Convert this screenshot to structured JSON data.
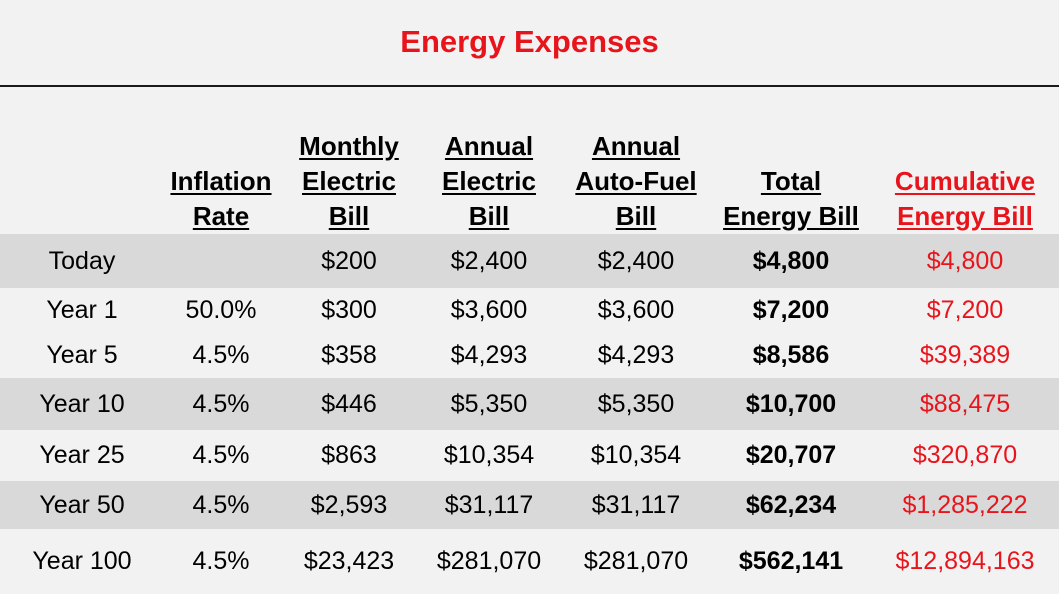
{
  "title": "Energy Expenses",
  "columns": [
    {
      "key": "period",
      "lines": []
    },
    {
      "key": "inflation",
      "lines": [
        "Inflation",
        "Rate"
      ]
    },
    {
      "key": "monthly",
      "lines": [
        "Monthly",
        "Electric",
        "Bill"
      ]
    },
    {
      "key": "annual_electric",
      "lines": [
        "Annual",
        "Electric",
        "Bill"
      ]
    },
    {
      "key": "annual_auto",
      "lines": [
        "Annual",
        "Auto-Fuel",
        "Bill"
      ]
    },
    {
      "key": "total",
      "lines": [
        "Total",
        "Energy Bill"
      ]
    },
    {
      "key": "cumulative",
      "lines": [
        "Cumulative",
        "Energy Bill"
      ]
    }
  ],
  "rows": [
    {
      "period": "Today",
      "inflation": "",
      "monthly": "$200",
      "annual_electric": "$2,400",
      "annual_auto": "$2,400",
      "total": "$4,800",
      "cumulative": "$4,800"
    },
    {
      "period": "Year 1",
      "inflation": "50.0%",
      "monthly": "$300",
      "annual_electric": "$3,600",
      "annual_auto": "$3,600",
      "total": "$7,200",
      "cumulative": "$7,200"
    },
    {
      "period": "Year 5",
      "inflation": "4.5%",
      "monthly": "$358",
      "annual_electric": "$4,293",
      "annual_auto": "$4,293",
      "total": "$8,586",
      "cumulative": "$39,389"
    },
    {
      "period": "Year 10",
      "inflation": "4.5%",
      "monthly": "$446",
      "annual_electric": "$5,350",
      "annual_auto": "$5,350",
      "total": "$10,700",
      "cumulative": "$88,475"
    },
    {
      "period": "Year 25",
      "inflation": "4.5%",
      "monthly": "$863",
      "annual_electric": "$10,354",
      "annual_auto": "$10,354",
      "total": "$20,707",
      "cumulative": "$320,870"
    },
    {
      "period": "Year 50",
      "inflation": "4.5%",
      "monthly": "$2,593",
      "annual_electric": "$31,117",
      "annual_auto": "$31,117",
      "total": "$62,234",
      "cumulative": "$1,285,222"
    },
    {
      "period": "Year 100",
      "inflation": "4.5%",
      "monthly": "$23,423",
      "annual_electric": "$281,070",
      "annual_auto": "$281,070",
      "total": "$562,141",
      "cumulative": "$12,894,163"
    }
  ],
  "colors": {
    "accent_red": "#e8141c",
    "row_shade": "#d9d9d9",
    "background": "#f2f2f2"
  }
}
